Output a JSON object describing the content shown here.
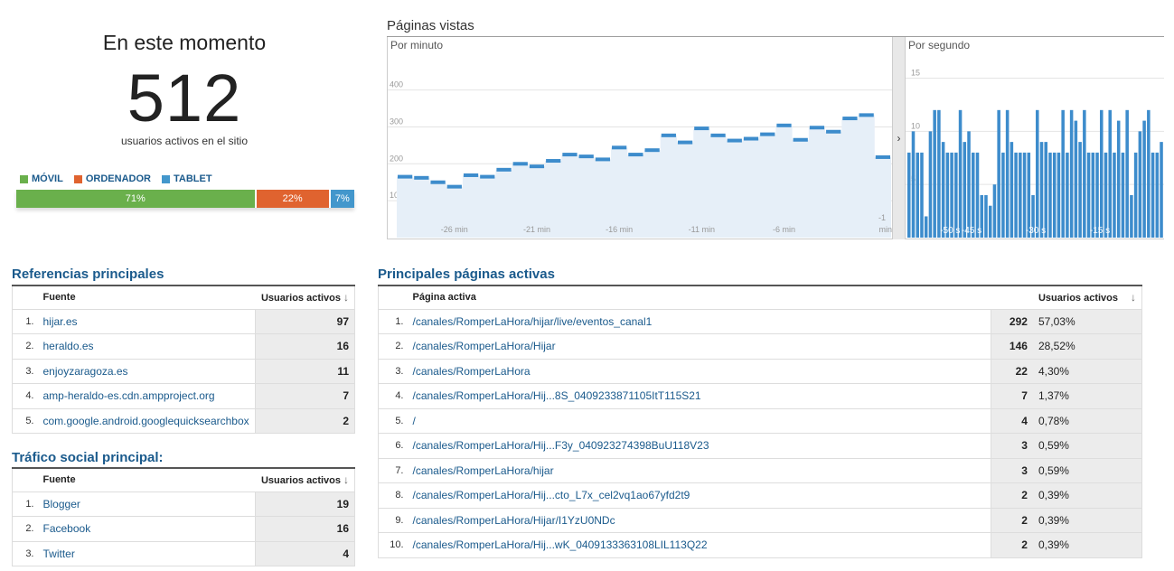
{
  "summary": {
    "title": "En este momento",
    "active_users": "512",
    "active_label": "usuarios activos en el sitio"
  },
  "devices": {
    "legend": [
      {
        "label": "MÓVIL",
        "color": "#6ab04c"
      },
      {
        "label": "ORDENADOR",
        "color": "#e0632f"
      },
      {
        "label": "TABLET",
        "color": "#4397cc"
      }
    ],
    "segments": [
      {
        "label": "71%",
        "share": 0.71,
        "color": "#6ab04c"
      },
      {
        "label": "22%",
        "share": 0.22,
        "color": "#e0632f"
      },
      {
        "label": "7%",
        "share": 0.07,
        "color": "#4397cc"
      }
    ]
  },
  "pageviews": {
    "title": "Páginas vistas",
    "per_minute_label": "Por minuto",
    "per_second_label": "Por segundo",
    "toggle_glyph": "›"
  },
  "chart_data": [
    {
      "type": "area",
      "title": "Por minuto",
      "y_ticks": [
        "400",
        "300",
        "200",
        "100"
      ],
      "ylim": [
        0,
        470
      ],
      "x_ticks": [
        "-26 min",
        "-21 min",
        "-16 min",
        "-11 min",
        "-6 min",
        "-1 min"
      ],
      "x_tick_positions": [
        -26,
        -21,
        -16,
        -11,
        -6,
        -1
      ],
      "x": [
        -29,
        -28,
        -27,
        -26,
        -25,
        -24,
        -23,
        -22,
        -21,
        -20,
        -19,
        -18,
        -17,
        -16,
        -15,
        -14,
        -13,
        -12,
        -11,
        -10,
        -9,
        -8,
        -7,
        -6,
        -5,
        -4,
        -3,
        -2,
        -1,
        0
      ],
      "values": [
        165,
        162,
        150,
        138,
        169,
        165,
        184,
        200,
        193,
        208,
        225,
        220,
        212,
        244,
        225,
        237,
        277,
        258,
        296,
        277,
        263,
        268,
        280,
        304,
        265,
        298,
        287,
        323,
        332,
        218
      ],
      "grid": true,
      "legend": "none"
    },
    {
      "type": "bar",
      "title": "Por segundo",
      "y_ticks": [
        "15",
        "10",
        "5"
      ],
      "ylim": [
        0,
        17
      ],
      "x_ticks": [
        "-50 s",
        "-45 s",
        "-30 s",
        "-15 s"
      ],
      "x_tick_positions": [
        50,
        45,
        30,
        15
      ],
      "values": [
        8,
        10,
        8,
        8,
        2,
        10,
        12,
        12,
        9,
        8,
        8,
        8,
        12,
        9,
        10,
        8,
        8,
        4,
        4,
        3,
        5,
        12,
        8,
        12,
        9,
        8,
        8,
        8,
        8,
        4,
        12,
        9,
        9,
        8,
        8,
        8,
        12,
        8,
        12,
        11,
        9,
        12,
        8,
        8,
        8,
        12,
        8,
        12,
        8,
        11,
        8,
        12,
        4,
        8,
        10,
        11,
        12,
        8,
        8,
        9
      ],
      "grid": true,
      "legend": "none"
    }
  ],
  "referrals": {
    "title": "Referencias principales",
    "col_source": "Fuente",
    "col_users": "Usuarios activos",
    "rows": [
      {
        "n": "1.",
        "source": "hijar.es",
        "users": "97"
      },
      {
        "n": "2.",
        "source": "heraldo.es",
        "users": "16"
      },
      {
        "n": "3.",
        "source": "enjoyzaragoza.es",
        "users": "11"
      },
      {
        "n": "4.",
        "source": "amp-heraldo-es.cdn.ampproject.org",
        "users": "7"
      },
      {
        "n": "5.",
        "source": "com.google.android.googlequicksearchbox",
        "users": "2"
      }
    ]
  },
  "social": {
    "title": "Tráfico social principal:",
    "col_source": "Fuente",
    "col_users": "Usuarios activos",
    "rows": [
      {
        "n": "1.",
        "source": "Blogger",
        "users": "19"
      },
      {
        "n": "2.",
        "source": "Facebook",
        "users": "16"
      },
      {
        "n": "3.",
        "source": "Twitter",
        "users": "4"
      }
    ]
  },
  "pages": {
    "title": "Principales páginas activas",
    "col_page": "Página activa",
    "col_users": "Usuarios activos",
    "rows": [
      {
        "n": "1.",
        "page": "/canales/RomperLaHora/hijar/live/eventos_canal1",
        "users": "292",
        "pct": "57,03%"
      },
      {
        "n": "2.",
        "page": "/canales/RomperLaHora/Hijar",
        "users": "146",
        "pct": "28,52%"
      },
      {
        "n": "3.",
        "page": "/canales/RomperLaHora",
        "users": "22",
        "pct": "4,30%"
      },
      {
        "n": "4.",
        "page": "/canales/RomperLaHora/Hij...8S_0409233871105ItT115S21",
        "users": "7",
        "pct": "1,37%"
      },
      {
        "n": "5.",
        "page": "/",
        "users": "4",
        "pct": "0,78%"
      },
      {
        "n": "6.",
        "page": "/canales/RomperLaHora/Hij...F3y_040923274398BuU118V23",
        "users": "3",
        "pct": "0,59%"
      },
      {
        "n": "7.",
        "page": "/canales/RomperLaHora/hijar",
        "users": "3",
        "pct": "0,59%"
      },
      {
        "n": "8.",
        "page": "/canales/RomperLaHora/Hij...cto_L7x_cel2vq1ao67yfd2t9",
        "users": "2",
        "pct": "0,39%"
      },
      {
        "n": "9.",
        "page": "/canales/RomperLaHora/Hijar/I1YzU0NDc",
        "users": "2",
        "pct": "0,39%"
      },
      {
        "n": "10.",
        "page": "/canales/RomperLaHora/Hij...wK_0409133363108LIL113Q22",
        "users": "2",
        "pct": "0,39%"
      }
    ]
  },
  "icons": {
    "sort": "sort-down-arrow-icon",
    "expand": "chevron-right-icon"
  }
}
